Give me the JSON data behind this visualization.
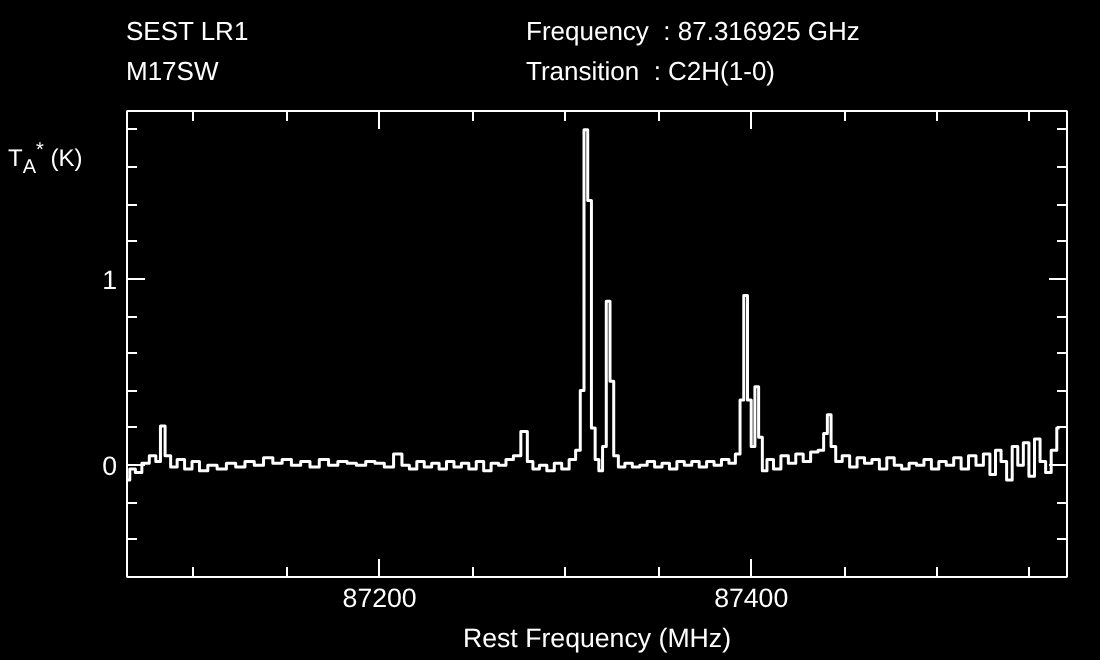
{
  "chart_data": {
    "type": "step",
    "title": "SEST LR1",
    "subtitle": "M17SW",
    "annotations": [
      "Frequency  : 87.316925 GHz",
      "Transition  : C2H(1-0)"
    ],
    "xlabel": "Rest Frequency (MHz)",
    "ylabel": "T$_{A}$$^{*}$ (K)",
    "xlim": [
      87064,
      87570
    ],
    "xticks": [
      87200,
      87400
    ],
    "ylim": [
      -0.6,
      1.9
    ],
    "yticks": [
      0,
      1
    ],
    "grid": false,
    "series": [
      {
        "color": "#ffffff",
        "x": [
          87064,
          87067,
          87070,
          87074,
          87078,
          87081,
          87083,
          87086,
          87089,
          87093,
          87097,
          87101,
          87105,
          87110,
          87115,
          87120,
          87125,
          87130,
          87135,
          87140,
          87145,
          87150,
          87155,
          87160,
          87165,
          87170,
          87175,
          87180,
          87185,
          87190,
          87195,
          87200,
          87205,
          87210,
          87214,
          87218,
          87222,
          87226,
          87230,
          87234,
          87238,
          87242,
          87246,
          87250,
          87254,
          87258,
          87262,
          87266,
          87270,
          87274,
          87278,
          87281,
          87284,
          87288,
          87292,
          87296,
          87300,
          87304,
          87307,
          87309,
          87311,
          87313,
          87315,
          87317,
          87319,
          87321,
          87323,
          87325,
          87327,
          87330,
          87334,
          87338,
          87342,
          87346,
          87350,
          87354,
          87358,
          87362,
          87366,
          87370,
          87374,
          87378,
          87382,
          87386,
          87390,
          87393,
          87395,
          87397,
          87399,
          87401,
          87403,
          87405,
          87407,
          87410,
          87414,
          87418,
          87422,
          87426,
          87430,
          87434,
          87438,
          87440,
          87442,
          87444,
          87447,
          87451,
          87455,
          87459,
          87463,
          87467,
          87471,
          87475,
          87479,
          87483,
          87487,
          87491,
          87495,
          87499,
          87503,
          87507,
          87511,
          87515,
          87519,
          87523,
          87527,
          87530,
          87533,
          87536,
          87539,
          87542,
          87545,
          87548,
          87551,
          87554,
          87557,
          87560,
          87563,
          87566
        ],
        "values": [
          -0.08,
          -0.02,
          -0.04,
          0.01,
          0.05,
          0.02,
          0.21,
          0.05,
          -0.01,
          0.03,
          -0.02,
          0.02,
          -0.03,
          0.0,
          -0.02,
          0.01,
          -0.01,
          0.02,
          0.0,
          0.04,
          0.01,
          0.03,
          0.0,
          0.02,
          -0.01,
          0.03,
          0.0,
          0.02,
          0.01,
          0.0,
          0.02,
          0.01,
          -0.01,
          0.06,
          0.0,
          -0.02,
          0.02,
          -0.01,
          0.01,
          -0.02,
          0.02,
          -0.01,
          0.01,
          -0.02,
          0.02,
          -0.03,
          0.01,
          0.0,
          0.03,
          0.05,
          0.18,
          0.02,
          -0.02,
          0.0,
          -0.03,
          0.01,
          -0.02,
          0.03,
          0.08,
          0.4,
          1.8,
          1.42,
          0.2,
          0.03,
          -0.03,
          0.1,
          0.88,
          0.45,
          0.05,
          -0.01,
          0.01,
          -0.01,
          0.0,
          0.02,
          -0.01,
          0.01,
          -0.02,
          0.02,
          0.0,
          0.02,
          -0.01,
          0.02,
          0.0,
          0.03,
          0.01,
          0.06,
          0.35,
          0.91,
          0.35,
          0.1,
          0.42,
          0.15,
          -0.03,
          0.03,
          -0.02,
          0.05,
          0.01,
          0.06,
          0.02,
          0.07,
          0.08,
          0.17,
          0.27,
          0.1,
          0.02,
          0.05,
          -0.01,
          0.04,
          0.01,
          0.03,
          -0.02,
          0.04,
          0.0,
          -0.02,
          0.01,
          0.0,
          0.03,
          -0.02,
          0.02,
          0.0,
          0.04,
          -0.02,
          0.05,
          0.0,
          0.06,
          -0.05,
          0.08,
          0.02,
          -0.08,
          0.1,
          0.0,
          0.12,
          -0.06,
          0.14,
          0.02,
          -0.04,
          0.08,
          0.2
        ]
      }
    ]
  }
}
